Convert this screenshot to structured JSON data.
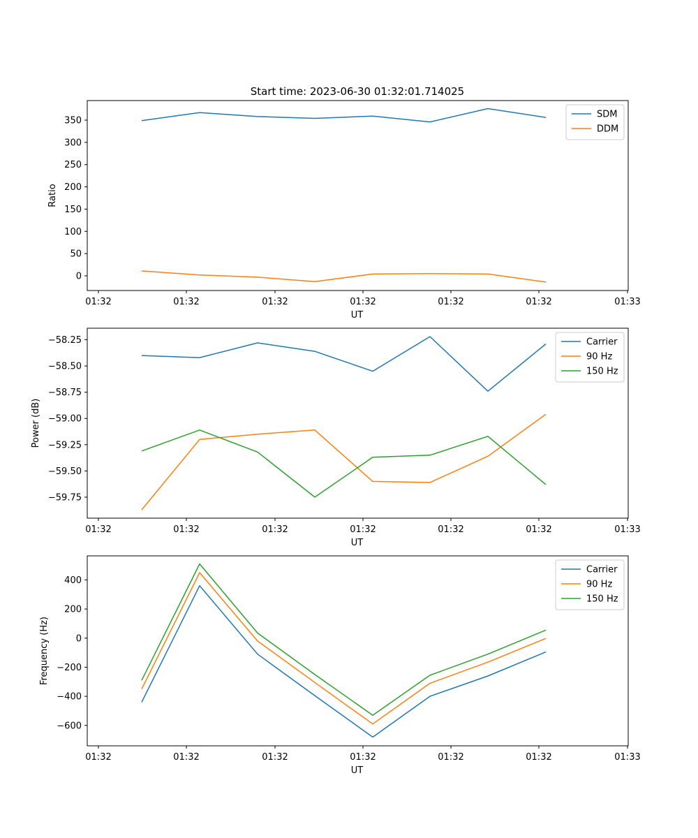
{
  "title": "Start time: 2023-06-30 01:32:01.714025",
  "colors": {
    "blue": "#1f77b4",
    "orange": "#ff7f0e",
    "green": "#2ca02c"
  },
  "chart_data": [
    {
      "type": "line",
      "xlabel": "UT",
      "ylabel": "Ratio",
      "x_tick_labels": [
        "01:32",
        "01:32",
        "01:32",
        "01:32",
        "01:32",
        "01:32",
        "01:32"
      ],
      "x_tick_last": "01:33",
      "y_ticks": [
        0,
        50,
        100,
        150,
        200,
        250,
        300,
        350
      ],
      "ylim": [
        -33,
        394
      ],
      "legend": "upper right",
      "series": [
        {
          "name": "SDM",
          "color": "#1f77b4",
          "values": [
            349,
            367,
            358,
            354,
            359,
            346,
            376,
            356
          ]
        },
        {
          "name": "DDM",
          "color": "#ff7f0e",
          "values": [
            11,
            2,
            -3,
            -13,
            4,
            5,
            4,
            -14
          ]
        }
      ]
    },
    {
      "type": "line",
      "xlabel": "UT",
      "ylabel": "Power (dB)",
      "x_tick_labels": [
        "01:32",
        "01:32",
        "01:32",
        "01:32",
        "01:32",
        "01:32",
        "01:32"
      ],
      "x_tick_last": "01:33",
      "y_ticks": [
        -59.75,
        -59.5,
        -59.25,
        -59.0,
        -58.75,
        -58.5,
        -58.25
      ],
      "y_tick_labels": [
        "−59.75",
        "−59.50",
        "−59.25",
        "−59.00",
        "−58.75",
        "−58.50",
        "−58.25"
      ],
      "ylim": [
        -59.95,
        -58.14
      ],
      "legend": "upper right",
      "series": [
        {
          "name": "Carrier",
          "color": "#1f77b4",
          "values": [
            -58.4,
            -58.42,
            -58.28,
            -58.36,
            -58.55,
            -58.22,
            -58.74,
            -58.29
          ]
        },
        {
          "name": "90 Hz",
          "color": "#ff7f0e",
          "values": [
            -59.87,
            -59.2,
            -59.15,
            -59.11,
            -59.6,
            -59.61,
            -59.36,
            -58.96
          ]
        },
        {
          "name": "150 Hz",
          "color": "#2ca02c",
          "values": [
            -59.31,
            -59.11,
            -59.32,
            -59.75,
            -59.37,
            -59.35,
            -59.17,
            -59.63
          ]
        }
      ]
    },
    {
      "type": "line",
      "xlabel": "UT",
      "ylabel": "Frequency (Hz)",
      "x_tick_labels": [
        "01:32",
        "01:32",
        "01:32",
        "01:32",
        "01:32",
        "01:32",
        "01:32"
      ],
      "x_tick_last": "01:33",
      "y_ticks": [
        -600,
        -400,
        -200,
        0,
        200,
        400
      ],
      "y_tick_labels": [
        "−600",
        "−400",
        "−200",
        "0",
        "200",
        "400"
      ],
      "ylim": [
        -740,
        565
      ],
      "legend": "upper right",
      "series": [
        {
          "name": "Carrier",
          "color": "#1f77b4",
          "values": [
            -440,
            360,
            -110,
            -395,
            -680,
            -400,
            -260,
            -95
          ]
        },
        {
          "name": "90 Hz",
          "color": "#ff7f0e",
          "values": [
            -350,
            450,
            -20,
            -305,
            -590,
            -310,
            -165,
            -2
          ]
        },
        {
          "name": "150 Hz",
          "color": "#2ca02c",
          "values": [
            -290,
            510,
            35,
            -250,
            -530,
            -255,
            -110,
            55
          ]
        }
      ]
    }
  ]
}
